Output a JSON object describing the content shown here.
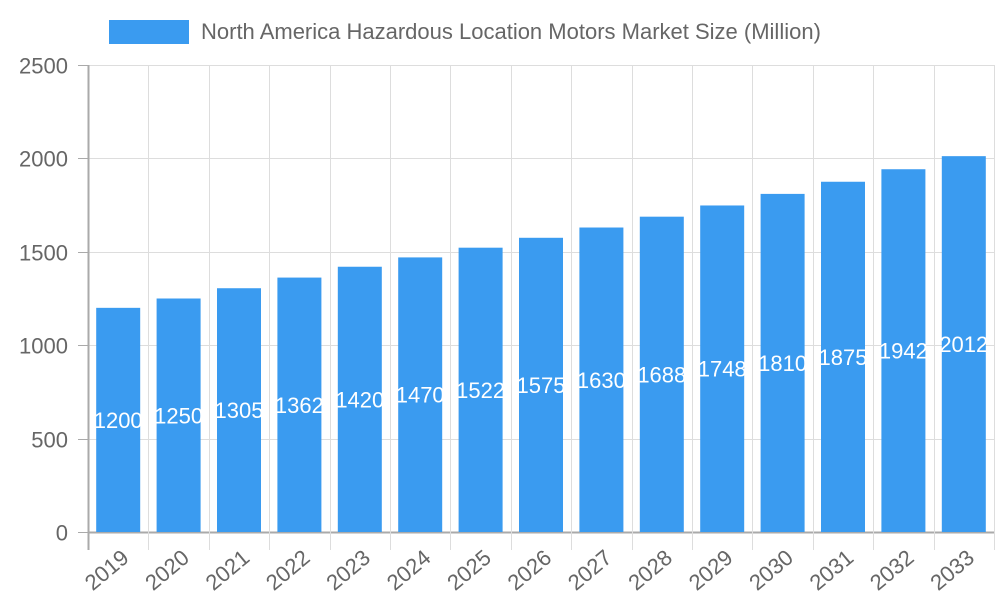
{
  "legend": {
    "label": "North America Hazardous Location Motors Market Size (Million)",
    "color": "#3a9bf0"
  },
  "chart_data": {
    "type": "bar",
    "title": "",
    "xlabel": "",
    "ylabel": "",
    "categories": [
      "2019",
      "2020",
      "2021",
      "2022",
      "2023",
      "2024",
      "2025",
      "2026",
      "2027",
      "2028",
      "2029",
      "2030",
      "2031",
      "2032",
      "2033"
    ],
    "series": [
      {
        "name": "North America Hazardous Location Motors Market Size (Million)",
        "values": [
          1200,
          1250,
          1305,
          1362,
          1420,
          1470,
          1522,
          1575,
          1630,
          1688,
          1748,
          1810,
          1875,
          1942,
          2012
        ],
        "color": "#3a9bf0"
      }
    ],
    "ylim": [
      0,
      2500
    ],
    "yticks": [
      0,
      500,
      1000,
      1500,
      2000,
      2500
    ],
    "grid": true,
    "legend_position": "top",
    "data_labels": true
  }
}
